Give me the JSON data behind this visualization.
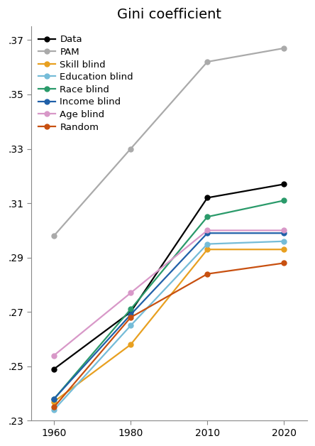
{
  "x_positions": [
    0,
    1,
    2,
    3
  ],
  "x_labels": [
    "1960",
    "1980",
    "2010",
    "2020"
  ],
  "series": [
    {
      "label": "Data",
      "color": "#000000",
      "marker": "o",
      "values": [
        0.249,
        0.27,
        0.312,
        0.317
      ]
    },
    {
      "label": "PAM",
      "color": "#aaaaaa",
      "marker": "o",
      "values": [
        0.298,
        0.33,
        0.362,
        0.367
      ]
    },
    {
      "label": "Skill blind",
      "color": "#E8A020",
      "marker": "o",
      "values": [
        0.237,
        0.258,
        0.293,
        0.293
      ]
    },
    {
      "label": "Education blind",
      "color": "#75BCD8",
      "marker": "o",
      "values": [
        0.234,
        0.265,
        0.295,
        0.296
      ]
    },
    {
      "label": "Race blind",
      "color": "#2A9A6A",
      "marker": "o",
      "values": [
        0.238,
        0.271,
        0.305,
        0.311
      ]
    },
    {
      "label": "Income blind",
      "color": "#2060A8",
      "marker": "o",
      "values": [
        0.238,
        0.269,
        0.299,
        0.299
      ]
    },
    {
      "label": "Age blind",
      "color": "#D898C8",
      "marker": "o",
      "values": [
        0.254,
        0.277,
        0.3,
        0.3
      ]
    },
    {
      "label": "Random",
      "color": "#C85010",
      "marker": "o",
      "values": [
        0.235,
        0.268,
        0.284,
        0.288
      ]
    }
  ],
  "title": "Gini coefficient",
  "ylim": [
    0.23,
    0.375
  ],
  "yticks": [
    0.23,
    0.25,
    0.27,
    0.29,
    0.31,
    0.33,
    0.35,
    0.37
  ],
  "ytick_labels": [
    ".23",
    ".25",
    ".27",
    ".29",
    ".31",
    ".33",
    ".35",
    ".37"
  ],
  "background_color": "#ffffff",
  "title_fontsize": 14,
  "legend_fontsize": 9.5,
  "tick_fontsize": 10,
  "linewidth": 1.6,
  "markersize": 5
}
